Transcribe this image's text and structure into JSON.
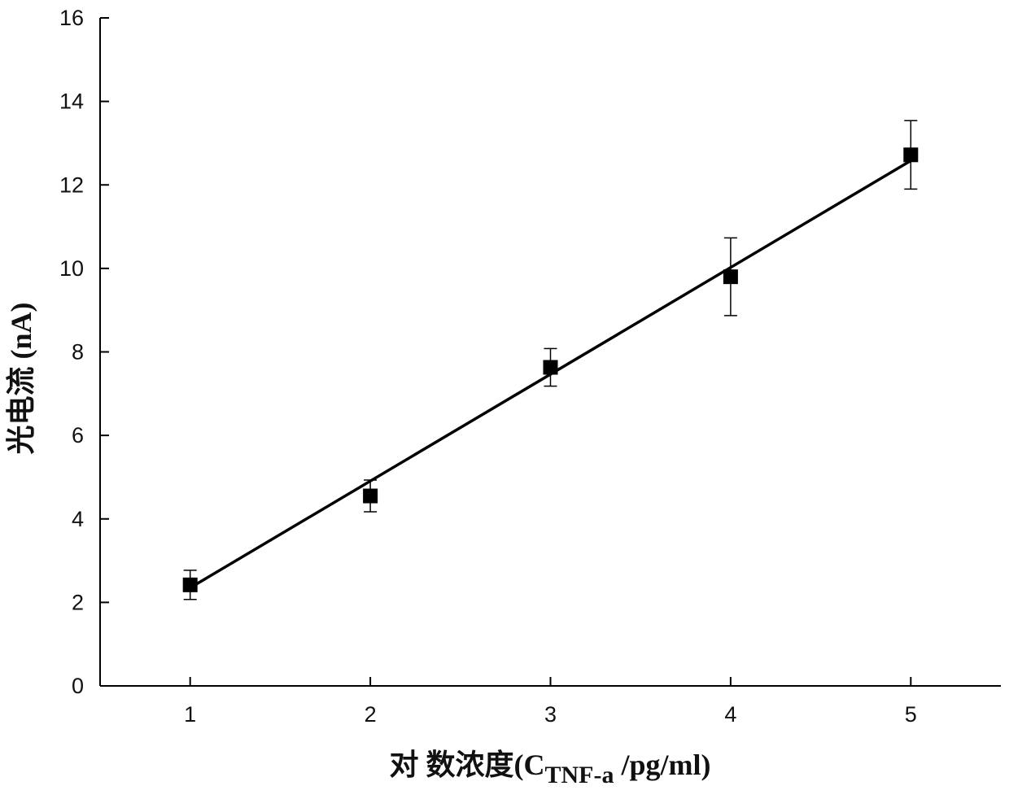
{
  "chart_data": {
    "type": "scatter",
    "title": "",
    "xlabel": {
      "main": "对 数浓度(C",
      "subscript": "TNF-a",
      "suffix": " /pg/ml)"
    },
    "ylabel": "光电流 (nA)",
    "xlim": [
      0.5,
      5.5
    ],
    "ylim": [
      0,
      16
    ],
    "xticks": [
      1,
      2,
      3,
      4,
      5
    ],
    "yticks": [
      0,
      2,
      4,
      6,
      8,
      10,
      12,
      14,
      16
    ],
    "grid": false,
    "marker": "square",
    "colors": {
      "marker": "#000000",
      "line": "#000000",
      "axis": "#000000"
    },
    "series": [
      {
        "x": [
          1,
          2,
          3,
          4,
          5
        ],
        "y": [
          2.42,
          4.55,
          7.63,
          9.8,
          12.72
        ],
        "yerr": [
          0.35,
          0.38,
          0.45,
          0.93,
          0.82
        ]
      }
    ],
    "fit": {
      "type": "linear",
      "x": [
        1,
        5
      ],
      "y": [
        2.35,
        12.58
      ]
    }
  }
}
